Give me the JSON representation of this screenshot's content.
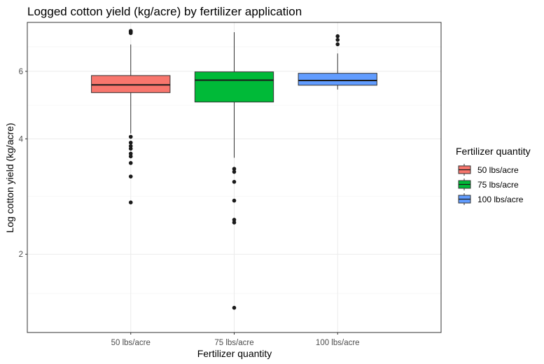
{
  "chart_data": {
    "type": "boxplot",
    "title": "Logged cotton yield (kg/acre) by fertilizer application",
    "xlabel": "Fertilizer quantity",
    "ylabel": "Log cotton yield (kg/acre)",
    "y_scale": "log",
    "ylim": [
      1.25,
      8.05
    ],
    "yticks": [
      2,
      4,
      6
    ],
    "categories": [
      "50 lbs/acre",
      "75 lbs/acre",
      "100 lbs/acre"
    ],
    "grid": true,
    "legend": {
      "title": "Fertilizer quantity",
      "placement": "right",
      "entries": [
        "50 lbs/acre",
        "75 lbs/acre",
        "100 lbs/acre"
      ]
    },
    "colors": [
      "#F8766D",
      "#00BA38",
      "#619CFF"
    ],
    "series": [
      {
        "name": "50 lbs/acre",
        "whisker_low": 4.13,
        "q1": 5.28,
        "median": 5.53,
        "q3": 5.85,
        "whisker_high": 7.05,
        "outliers": [
          7.65,
          7.6,
          7.55,
          7.6,
          4.05,
          3.91,
          3.83,
          3.77,
          3.66,
          3.6,
          3.46,
          3.19,
          2.73
        ]
      },
      {
        "name": "75 lbs/acre",
        "whisker_low": 3.57,
        "q1": 4.99,
        "median": 5.69,
        "q3": 5.98,
        "whisker_high": 7.59,
        "outliers": [
          3.34,
          3.28,
          3.09,
          2.76,
          2.46,
          2.42,
          1.45
        ]
      },
      {
        "name": "100 lbs/acre",
        "whisker_low": 5.38,
        "q1": 5.52,
        "median": 5.68,
        "q3": 5.93,
        "whisker_high": 6.68,
        "outliers": [
          7.41,
          7.25,
          7.06
        ]
      }
    ]
  }
}
